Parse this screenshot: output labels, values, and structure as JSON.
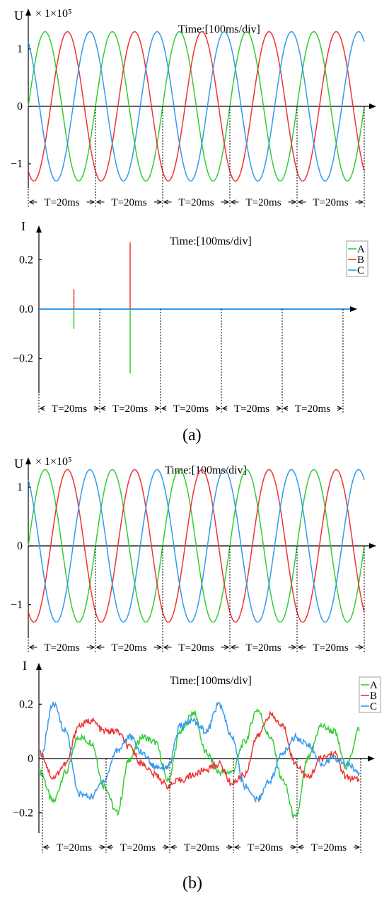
{
  "figure": {
    "panel_labels": [
      "(a)",
      "(b)"
    ]
  },
  "colors": {
    "A": "#33cc33",
    "B": "#ee3333",
    "C": "#3399ee"
  },
  "chart_data": [
    {
      "id": "a_voltage",
      "type": "line",
      "title": "Time:[100ms/div]",
      "ylabel": "U",
      "multiplier": "× 1×10⁵",
      "ylim": [
        -1.45,
        1.45
      ],
      "yticks": [
        "1",
        "0",
        "−1"
      ],
      "ytick_values": [
        1,
        0,
        -1
      ],
      "period_ms": 20,
      "cycles": 5,
      "amplitude": 1.3,
      "series": [
        {
          "phase": "A",
          "phase_deg": 0
        },
        {
          "phase": "B",
          "phase_deg": -120
        },
        {
          "phase": "C",
          "phase_deg": 120
        }
      ],
      "segment_label": "T=20ms",
      "segments": 5
    },
    {
      "id": "a_current",
      "type": "line",
      "title": "Time:[100ms/div]",
      "ylabel": "I",
      "ylim": [
        -0.33,
        0.33
      ],
      "yticks": [
        "0.2",
        "0.0",
        "−0.2"
      ],
      "ytick_values": [
        0.2,
        0,
        -0.2
      ],
      "legend": [
        "A",
        "B",
        "C"
      ],
      "legend_position": "top-right",
      "spikes": [
        {
          "t_ms": 11.5,
          "B_peak": 0.08,
          "A_peak": -0.08
        },
        {
          "t_ms": 30.0,
          "B_peak": 0.27,
          "A_peak": -0.26
        }
      ],
      "segment_label": "T=20ms",
      "segments": 5
    },
    {
      "id": "b_voltage",
      "type": "line",
      "title": "Time:[100ms/div]",
      "ylabel": "U",
      "multiplier": "× 1×10⁵",
      "ylim": [
        -1.45,
        1.45
      ],
      "yticks": [
        "1",
        "0",
        "−1"
      ],
      "ytick_values": [
        1,
        0,
        -1
      ],
      "period_ms": 20,
      "cycles": 5,
      "amplitude": 1.3,
      "series": [
        {
          "phase": "A",
          "phase_deg": 0
        },
        {
          "phase": "B",
          "phase_deg": -120
        },
        {
          "phase": "C",
          "phase_deg": 120
        }
      ],
      "segment_label": "T=20ms",
      "segments": 5
    },
    {
      "id": "b_current",
      "type": "line",
      "title": "Time:[100ms/div]",
      "ylabel": "I",
      "ylim": [
        -0.3,
        0.3
      ],
      "yticks": [
        "0.2",
        "0",
        "−0.2"
      ],
      "ytick_values": [
        0.2,
        0,
        -0.2
      ],
      "legend": [
        "A",
        "B",
        "C"
      ],
      "legend_position": "top-right",
      "x_ms": [
        0,
        4,
        8,
        12,
        16,
        20,
        24,
        28,
        32,
        36,
        40,
        44,
        48,
        52,
        56,
        60,
        64,
        68,
        72,
        76,
        80,
        84,
        88,
        92,
        96,
        100
      ],
      "series": [
        {
          "name": "A",
          "values": [
            -0.05,
            -0.16,
            -0.05,
            0.08,
            0.06,
            -0.1,
            -0.2,
            0.0,
            0.08,
            0.06,
            -0.08,
            0.1,
            0.17,
            0.02,
            -0.05,
            -0.05,
            0.06,
            0.18,
            0.08,
            -0.08,
            -0.22,
            0.0,
            0.12,
            0.1,
            -0.03,
            0.11
          ]
        },
        {
          "name": "B",
          "values": [
            0.02,
            -0.07,
            -0.02,
            0.12,
            0.14,
            0.1,
            0.1,
            0.04,
            -0.02,
            -0.06,
            -0.1,
            -0.08,
            -0.06,
            -0.04,
            -0.02,
            -0.09,
            -0.06,
            0.08,
            0.16,
            0.12,
            -0.02,
            -0.07,
            0.0,
            0.02,
            -0.07,
            -0.08
          ]
        },
        {
          "name": "C",
          "values": [
            0.0,
            0.2,
            0.1,
            -0.13,
            -0.14,
            -0.08,
            0.03,
            0.08,
            0.02,
            -0.03,
            -0.03,
            0.12,
            0.14,
            0.1,
            0.2,
            0.08,
            -0.1,
            -0.15,
            -0.08,
            0.02,
            0.08,
            0.05,
            -0.02,
            0.0,
            -0.02,
            -0.05
          ]
        }
      ],
      "segment_label": "T=20ms",
      "segments": 5
    }
  ]
}
